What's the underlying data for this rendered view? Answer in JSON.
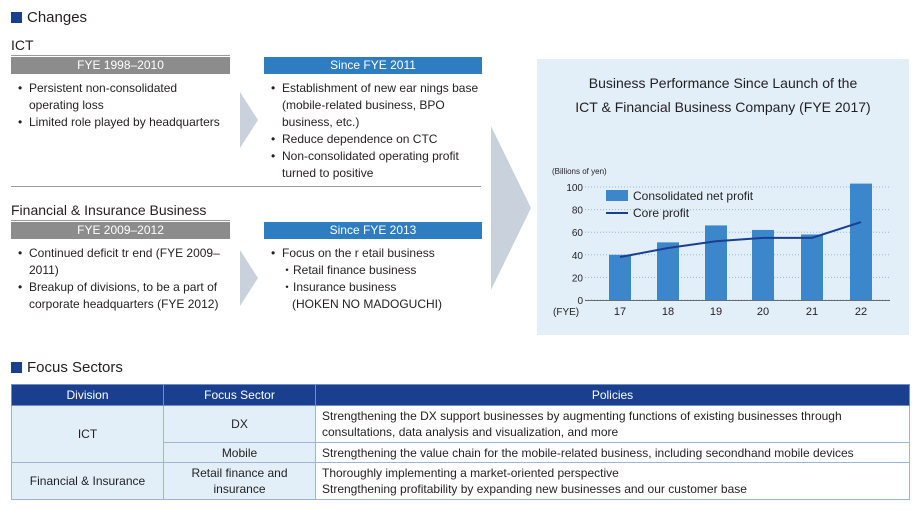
{
  "changes": {
    "title": "Changes",
    "ict": {
      "heading": "ICT",
      "past": {
        "label": "FYE 1998–2010",
        "items": [
          "Persistent non-consolidated operating loss",
          "Limited role played by headquarters"
        ]
      },
      "since": {
        "label": "Since FYE 2011",
        "items": [
          "Establishment of new ear nings base (mobile-related business, BPO business, etc.)",
          "Reduce dependence on CTC",
          "Non-consolidated operating profit turned to positive"
        ]
      }
    },
    "fin": {
      "heading": "Financial & Insurance Business",
      "past": {
        "label": "FYE 2009–2012",
        "items": [
          "Continued deficit tr end (FYE 2009–2011)",
          "Breakup of divisions, to be a part of corporate headquarters (FYE 2012)"
        ]
      },
      "since": {
        "label": "Since FYE 2013",
        "items": [
          "Focus on the r etail business"
        ],
        "sub": [
          "・Retail finance business",
          "・Insurance business",
          "(HOKEN NO MADOGUCHI)"
        ]
      }
    }
  },
  "chart_panel": {
    "title_line1": "Business Performance Since Launch of the",
    "title_line2": "ICT & Financial Business Company (FYE 2017)"
  },
  "chart_data": {
    "type": "bar",
    "unit_label": "(Billions of yen)",
    "x_axis_label": "(FYE)",
    "categories": [
      "17",
      "18",
      "19",
      "20",
      "21",
      "22"
    ],
    "y_ticks": [
      "100",
      "80",
      "60",
      "40",
      "20",
      "0"
    ],
    "ylim": [
      0,
      100
    ],
    "series": [
      {
        "name": "Consolidated net profit",
        "type": "bar",
        "color": "#3c86cb",
        "values": [
          40,
          51,
          66,
          62,
          58,
          103
        ]
      },
      {
        "name": "Core profit",
        "type": "line",
        "color": "#1b3f8f",
        "values": [
          38,
          46,
          52,
          55,
          55,
          69
        ]
      }
    ]
  },
  "focus": {
    "title": "Focus Sectors",
    "headers": [
      "Division",
      "Focus Sector",
      "Policies"
    ],
    "ict_division": "ICT",
    "dx_sector": "DX",
    "dx_policy": "Strengthening the DX support businesses by augmenting functions of existing businesses through consultations, data analysis and visualization, and more",
    "mobile_sector": "Mobile",
    "mobile_policy": "Strengthening the value chain for the mobile-related business, including secondhand mobile devices",
    "fin_division": "Financial & Insurance",
    "retail_sector": "Retail finance and insurance",
    "retail_policy_1": "Thoroughly implementing a market-oriented perspective",
    "retail_policy_2": "Strengthening profitability by expanding new businesses and our customer base"
  }
}
